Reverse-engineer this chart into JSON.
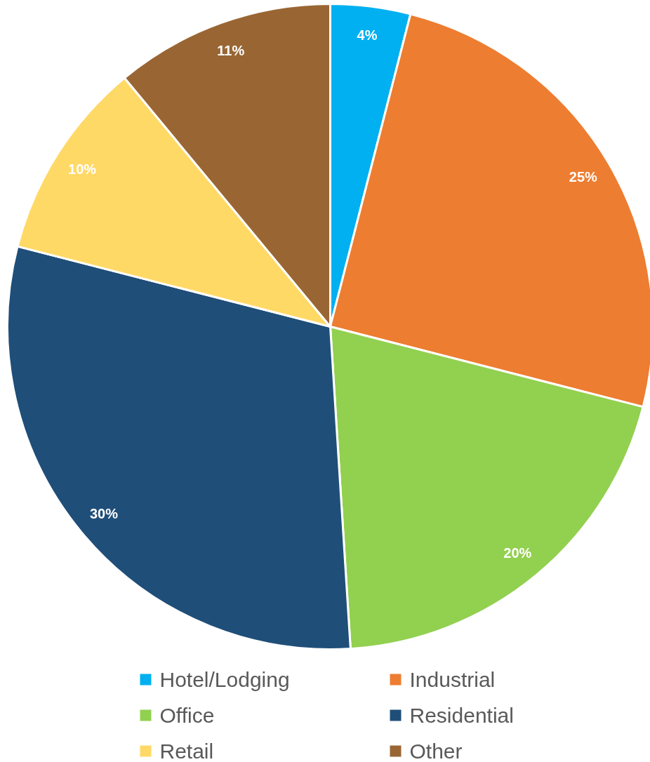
{
  "chart_data": {
    "type": "pie",
    "categories": [
      "Hotel/Lodging",
      "Industrial",
      "Office",
      "Residential",
      "Retail",
      "Other"
    ],
    "values": [
      4,
      25,
      20,
      30,
      10,
      11
    ],
    "colors": [
      "#00b0f0",
      "#ed7d31",
      "#92d050",
      "#1f4e79",
      "#ffd966",
      "#996633"
    ],
    "value_labels": [
      "4%",
      "25%",
      "20%",
      "30%",
      "10%",
      "11%"
    ],
    "legend": "bottom"
  }
}
